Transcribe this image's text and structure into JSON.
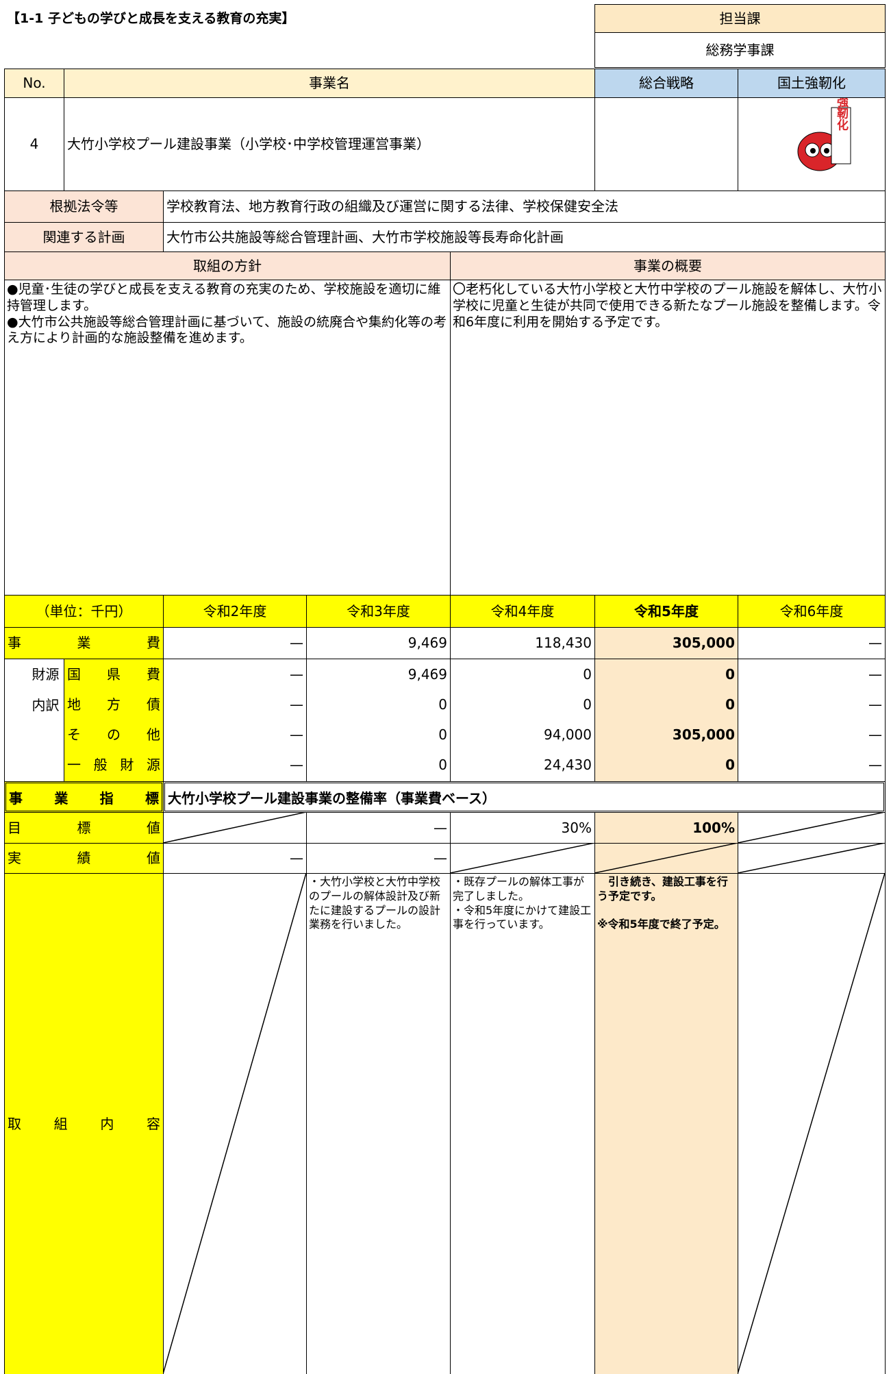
{
  "header": {
    "title": "【1-1 子どもの学びと成長を支える教育の充実】",
    "department_label": "担当課",
    "department": "総務学事課"
  },
  "columns": {
    "no": "No.",
    "project_name": "事業名",
    "strategy": "総合戦略",
    "resilience": "国土強靭化"
  },
  "project": {
    "no": "4",
    "name": "大竹小学校プール建設事業（小学校･中学校管理運営事業）",
    "resilience_badge": "強靭化"
  },
  "basis": {
    "label": "根拠法令等",
    "text": "学校教育法、地方教育行政の組織及び運営に関する法律、学校保健安全法"
  },
  "plans": {
    "label": "関連する計画",
    "text": "大竹市公共施設等総合管理計画、大竹市学校施設等長寿命化計画"
  },
  "policy": {
    "label": "取組の方針",
    "text": "●児童･生徒の学びと成長を支える教育の充実のため、学校施設を適切に維持管理します。\n●大竹市公共施設等総合管理計画に基づいて、施設の統廃合や集約化等の考え方により計画的な施設整備を進めます。"
  },
  "overview": {
    "label": "事業の概要",
    "text": "〇老朽化している大竹小学校と大竹中学校のプール施設を解体し、大竹小学校に児童と生徒が共同で使用できる新たなプール施設を整備します。令和6年度に利用を開始する予定です。"
  },
  "budget": {
    "unit_label": "（単位：千円）",
    "years": [
      "令和2年度",
      "令和3年度",
      "令和4年度",
      "令和5年度",
      "令和6年度"
    ],
    "total": {
      "label": "事業費",
      "values": [
        "—",
        "9,469",
        "118,430",
        "305,000",
        "—"
      ]
    },
    "breakdown": {
      "label": "財源内訳",
      "rows": [
        {
          "label": "国県費",
          "values": [
            "—",
            "9,469",
            "0",
            "0",
            "—"
          ]
        },
        {
          "label": "地方債",
          "values": [
            "—",
            "0",
            "0",
            "0",
            "—"
          ]
        },
        {
          "label": "その他",
          "values": [
            "—",
            "0",
            "94,000",
            "305,000",
            "—"
          ]
        },
        {
          "label": "一般財源",
          "values": [
            "—",
            "0",
            "24,430",
            "0",
            "—"
          ]
        }
      ]
    }
  },
  "indicator": {
    "label": "事業指標",
    "text": "大竹小学校プール建設事業の整備率（事業費ベース）"
  },
  "target": {
    "label": "目標値",
    "values": [
      null,
      "—",
      "30%",
      "100%",
      null
    ]
  },
  "actual": {
    "label": "実績値",
    "values": [
      "—",
      "—",
      null,
      null,
      null
    ]
  },
  "activities": {
    "label": "取組内容",
    "values": [
      null,
      "・大竹小学校と大竹中学校のプールの解体設計及び新たに建設するプールの設計業務を行いました。",
      "・既存プールの解体工事が完了しました。\n・令和5年度にかけて建設工事を行っています。",
      "　引き続き、建設工事を行う予定です。\n\n※令和5年度で終了予定。",
      null
    ]
  }
}
